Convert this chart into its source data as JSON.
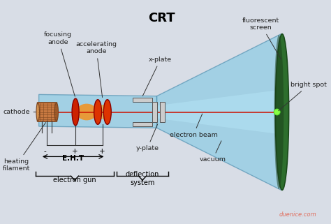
{
  "title": "CRT",
  "bg_color": "#d8dde6",
  "tube_color": "#7ec8e3",
  "screen_color": "#2d6e2d",
  "cathode_color": "#c87941",
  "beam_color": "#cc1100",
  "label_color": "#222222",
  "watermark_color": "#e07060",
  "labels": {
    "title": "CRT",
    "cathode": "cathode",
    "focusing_anode": "focusing\nanode",
    "accelerating_anode": "accelerating\nanode",
    "x_plate": "x-plate",
    "y_plate": "y-plate",
    "electron_beam": "electron beam",
    "fluorescent_screen": "fluorescent\nscreen",
    "bright_spot": "bright spot",
    "heating_filament": "heating\nfilament",
    "eht": "E.H.T",
    "electron_gun": "electron gun",
    "deflection_system": "deflection\nsystem",
    "vacuum": "vacuum",
    "watermark": "duenice.com",
    "minus": "-",
    "plus1": "+",
    "plus2": "+"
  }
}
